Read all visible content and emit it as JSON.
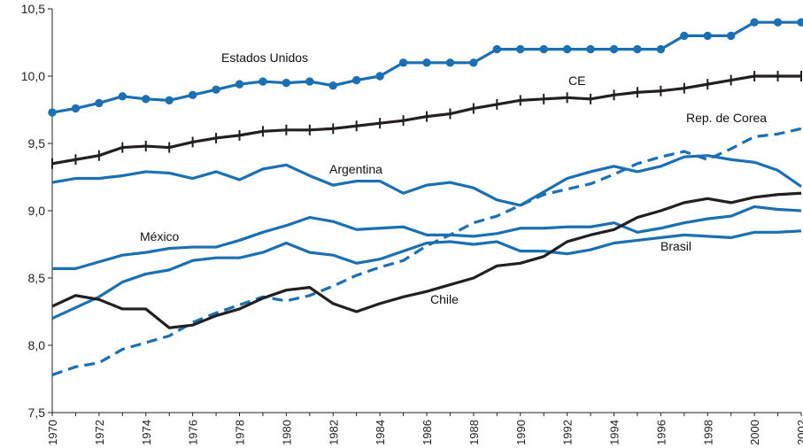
{
  "chart_data": {
    "type": "line",
    "x": [
      1970,
      1971,
      1972,
      1973,
      1974,
      1975,
      1976,
      1977,
      1978,
      1979,
      1980,
      1981,
      1982,
      1983,
      1984,
      1985,
      1986,
      1987,
      1988,
      1989,
      1990,
      1991,
      1992,
      1993,
      1994,
      1995,
      1996,
      1997,
      1998,
      1999,
      2000,
      2001,
      2002
    ],
    "x_tick_labels": [
      "1970",
      "1972",
      "1974",
      "1976",
      "1978",
      "1980",
      "1982",
      "1984",
      "1986",
      "1988",
      "1990",
      "1992",
      "1994",
      "1996",
      "1998",
      "2000",
      "2002"
    ],
    "y_ticks": [
      7.5,
      8.0,
      8.5,
      9.0,
      9.5,
      10.0,
      10.5
    ],
    "y_tick_labels": [
      "7,5",
      "8,0",
      "8,5",
      "9,0",
      "9,5",
      "10,0",
      "10,5"
    ],
    "ylim": [
      7.5,
      10.5
    ],
    "xlim": [
      1970,
      2002
    ],
    "grid": false,
    "legend": "none (series labeled directly on lines)",
    "series": [
      {
        "name": "Estados Unidos",
        "color": "#1a70b3",
        "style": "solid-with-circle-markers",
        "values": [
          9.73,
          9.76,
          9.8,
          9.85,
          9.83,
          9.82,
          9.86,
          9.9,
          9.94,
          9.96,
          9.95,
          9.96,
          9.93,
          9.97,
          10.0,
          10.1,
          10.1,
          10.1,
          10.1,
          10.2,
          10.2,
          10.2,
          10.2,
          10.2,
          10.2,
          10.2,
          10.2,
          10.3,
          10.3,
          10.3,
          10.4,
          10.4,
          10.4
        ]
      },
      {
        "name": "CE",
        "color": "#231f20",
        "style": "solid-with-tick-markers",
        "values": [
          9.35,
          9.38,
          9.41,
          9.47,
          9.48,
          9.47,
          9.51,
          9.54,
          9.56,
          9.59,
          9.6,
          9.6,
          9.61,
          9.63,
          9.65,
          9.67,
          9.7,
          9.72,
          9.76,
          9.79,
          9.82,
          9.83,
          9.84,
          9.83,
          9.86,
          9.88,
          9.89,
          9.91,
          9.94,
          9.97,
          10.0,
          10.0,
          10.0
        ]
      },
      {
        "name": "Rep. de Corea",
        "color": "#1a70b3",
        "style": "dashed",
        "values": [
          7.78,
          7.84,
          7.87,
          7.97,
          8.02,
          8.07,
          8.17,
          8.24,
          8.3,
          8.36,
          8.33,
          8.37,
          8.44,
          8.52,
          8.58,
          8.63,
          8.74,
          8.82,
          8.91,
          8.96,
          9.04,
          9.12,
          9.16,
          9.2,
          9.27,
          9.35,
          9.4,
          9.44,
          9.38,
          9.46,
          9.55,
          9.57,
          9.61
        ]
      },
      {
        "name": "Argentina",
        "color": "#1a70b3",
        "style": "solid",
        "values": [
          9.21,
          9.24,
          9.24,
          9.26,
          9.29,
          9.28,
          9.24,
          9.29,
          9.23,
          9.31,
          9.34,
          9.26,
          9.19,
          9.22,
          9.22,
          9.13,
          9.19,
          9.21,
          9.17,
          9.08,
          9.04,
          9.14,
          9.24,
          9.29,
          9.33,
          9.29,
          9.33,
          9.4,
          9.41,
          9.38,
          9.36,
          9.3,
          9.18
        ]
      },
      {
        "name": "México",
        "color": "#1a70b3",
        "style": "solid",
        "values": [
          8.57,
          8.57,
          8.62,
          8.67,
          8.69,
          8.72,
          8.73,
          8.73,
          8.78,
          8.84,
          8.89,
          8.95,
          8.92,
          8.86,
          8.87,
          8.88,
          8.82,
          8.82,
          8.81,
          8.83,
          8.87,
          8.87,
          8.88,
          8.88,
          8.91,
          8.84,
          8.87,
          8.91,
          8.94,
          8.96,
          9.03,
          9.01,
          9.0
        ]
      },
      {
        "name": "Brasil",
        "color": "#1a70b3",
        "style": "solid",
        "values": [
          8.2,
          8.28,
          8.36,
          8.47,
          8.53,
          8.56,
          8.63,
          8.65,
          8.65,
          8.69,
          8.76,
          8.69,
          8.67,
          8.61,
          8.64,
          8.7,
          8.76,
          8.77,
          8.75,
          8.77,
          8.7,
          8.7,
          8.68,
          8.71,
          8.76,
          8.78,
          8.8,
          8.82,
          8.81,
          8.8,
          8.84,
          8.84,
          8.85
        ]
      },
      {
        "name": "Chile",
        "color": "#231f20",
        "style": "solid",
        "values": [
          8.29,
          8.37,
          8.34,
          8.27,
          8.27,
          8.13,
          8.15,
          8.22,
          8.27,
          8.35,
          8.41,
          8.43,
          8.31,
          8.25,
          8.31,
          8.36,
          8.4,
          8.45,
          8.5,
          8.59,
          8.61,
          8.66,
          8.77,
          8.82,
          8.86,
          8.95,
          9.0,
          9.06,
          9.09,
          9.06,
          9.1,
          9.12,
          9.13
        ]
      }
    ],
    "labels": [
      {
        "text": "Estados Unidos",
        "series": "Estados Unidos"
      },
      {
        "text": "CE",
        "series": "CE"
      },
      {
        "text": "Rep. de Corea",
        "series": "Rep. de Corea"
      },
      {
        "text": "Argentina",
        "series": "Argentina"
      },
      {
        "text": "México",
        "series": "México"
      },
      {
        "text": "Brasil",
        "series": "Brasil"
      },
      {
        "text": "Chile",
        "series": "Chile"
      }
    ]
  }
}
